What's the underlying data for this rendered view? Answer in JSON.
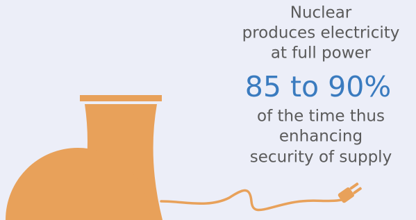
{
  "text_lines": [
    "Nuclear",
    "produces electricity",
    "at full power"
  ],
  "highlight": "85 to 90%",
  "text_lines_after": [
    "of the time thus",
    "enhancing",
    "security of supply"
  ]
}
